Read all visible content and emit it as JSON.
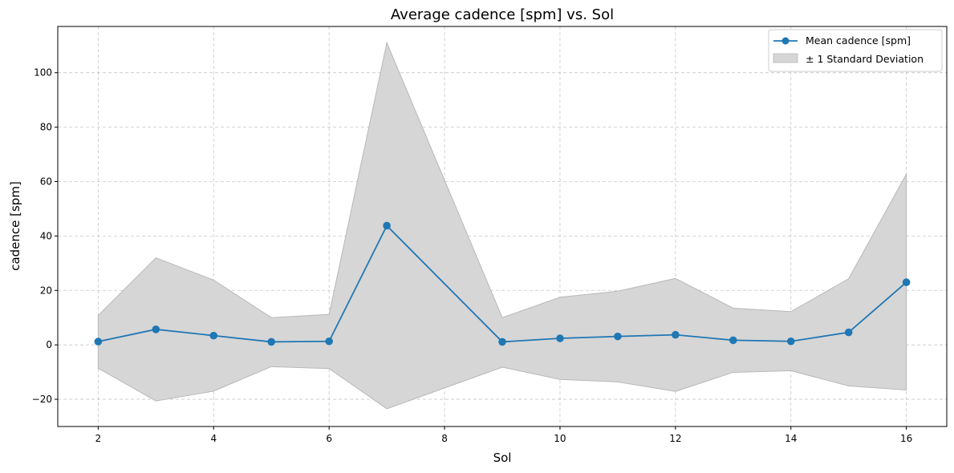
{
  "chart_data": {
    "type": "line",
    "title": "Average cadence [spm] vs. Sol",
    "xlabel": "Sol",
    "ylabel": "cadence [spm]",
    "xlim": [
      1.3,
      16.7
    ],
    "ylim": [
      -30,
      117
    ],
    "xticks": [
      2,
      4,
      6,
      8,
      10,
      12,
      14,
      16
    ],
    "yticks": [
      -20,
      0,
      20,
      40,
      60,
      80,
      100
    ],
    "grid": true,
    "legend_position": "top-right",
    "x": [
      2,
      3,
      4,
      5,
      6,
      7,
      9,
      10,
      11,
      12,
      13,
      14,
      15,
      16
    ],
    "series": [
      {
        "name": "Mean cadence [spm]",
        "values": [
          1.2,
          5.7,
          3.4,
          1.1,
          1.3,
          43.8,
          1.1,
          2.4,
          3.1,
          3.7,
          1.7,
          1.3,
          4.6,
          23.0
        ],
        "color": "#1f77b4"
      }
    ],
    "band": {
      "name": "± 1 Standard Deviation",
      "upper": [
        10.8,
        32.0,
        23.8,
        10.0,
        11.2,
        111.0,
        10.0,
        17.5,
        19.7,
        24.4,
        13.5,
        12.2,
        24.3,
        62.8
      ],
      "lower": [
        -8.6,
        -20.6,
        -17.0,
        -8.0,
        -8.7,
        -23.5,
        -8.2,
        -12.7,
        -13.6,
        -17.1,
        -10.1,
        -9.5,
        -15.1,
        -16.6
      ],
      "color": "#d6d6d6"
    }
  }
}
